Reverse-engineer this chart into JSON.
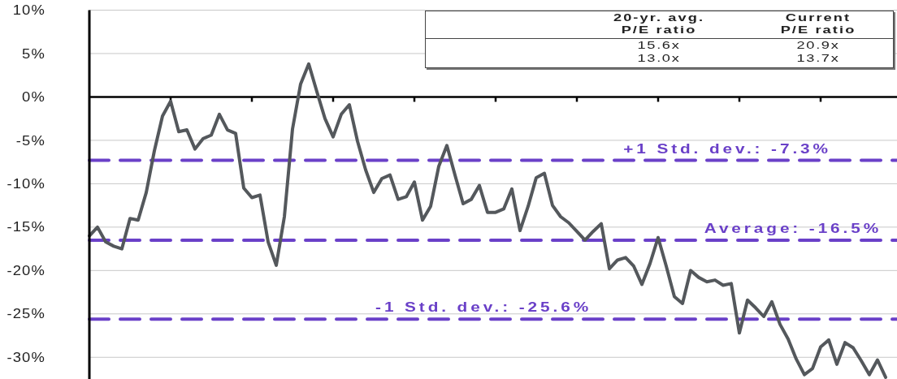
{
  "chart_data": {
    "type": "line",
    "categories": [
      null,
      null,
      null,
      null,
      null,
      null,
      null,
      null,
      null,
      null,
      null,
      null,
      null,
      null,
      null,
      null,
      null,
      null,
      null,
      null,
      null,
      null,
      null,
      null,
      null,
      null,
      null,
      null,
      null,
      null,
      null,
      null,
      null,
      null,
      null,
      null,
      null,
      null,
      null,
      null,
      null,
      null,
      null,
      null,
      null,
      null,
      null,
      null,
      null,
      null,
      null,
      null,
      null,
      null,
      null,
      null,
      null,
      null,
      null,
      null,
      null,
      null,
      null,
      null,
      null,
      null,
      null,
      null,
      null,
      null,
      null,
      null,
      null,
      null,
      null,
      null,
      null,
      null,
      null,
      null,
      null,
      null,
      null,
      null,
      null,
      null,
      null,
      null,
      null,
      null,
      null,
      null,
      null,
      null,
      null,
      null,
      null,
      null,
      null
    ],
    "series": [
      {
        "color": "#54585c",
        "values": [
          -16.0,
          -15.0,
          -16.7,
          -17.2,
          -17.5,
          -14.0,
          -14.2,
          -11.0,
          -6.2,
          -2.2,
          -0.5,
          -4.0,
          -3.8,
          -6.0,
          -4.8,
          -4.4,
          -2.0,
          -3.8,
          -4.2,
          -10.5,
          -11.6,
          -11.3,
          -16.7,
          -19.4,
          -13.8,
          -3.7,
          1.5,
          3.8,
          0.6,
          -2.5,
          -4.6,
          -2.0,
          -0.9,
          -5.1,
          -8.4,
          -11.0,
          -9.4,
          -9.0,
          -11.8,
          -11.5,
          -9.8,
          -14.2,
          -12.6,
          -8.0,
          -5.6,
          -9.0,
          -12.3,
          -11.8,
          -10.2,
          -13.3,
          -13.3,
          -12.9,
          -10.6,
          -15.4,
          -12.6,
          -9.3,
          -8.8,
          -12.5,
          -13.8,
          -14.5,
          -15.5,
          -16.5,
          -15.5,
          -14.6,
          -19.8,
          -18.8,
          -18.5,
          -19.5,
          -21.6,
          -19.2,
          -16.2,
          -19.5,
          -23.0,
          -23.8,
          -20.0,
          -20.8,
          -21.3,
          -21.1,
          -21.7,
          -21.5,
          -27.2,
          -23.4,
          -24.3,
          -25.3,
          -23.6,
          -26.2,
          -27.9,
          -30.2,
          -32.0,
          -31.3,
          -28.8,
          -28.0,
          -30.8,
          -28.3,
          -28.9,
          -30.4,
          -32.0,
          -30.3,
          -32.3
        ]
      }
    ],
    "ylim": [
      -32.5,
      10
    ],
    "yticks": [
      {
        "value": 10,
        "label": "10%"
      },
      {
        "value": 5,
        "label": "5%"
      },
      {
        "value": 0,
        "label": "0%"
      },
      {
        "value": -5,
        "label": "-5%"
      },
      {
        "value": -10,
        "label": "-10%"
      },
      {
        "value": -15,
        "label": "-15%"
      },
      {
        "value": -20,
        "label": "-20%"
      },
      {
        "value": -25,
        "label": "-25%"
      },
      {
        "value": -30,
        "label": "-30%"
      }
    ],
    "grid": "y",
    "tick_labels": "y",
    "ref_lines": [
      {
        "axis": "y",
        "value": -7.3,
        "label": "+1 Std. dev.: -7.3%",
        "color": "#6a40c8",
        "line_style": "dashed"
      },
      {
        "axis": "y",
        "value": -16.5,
        "label": "Average: -16.5%",
        "color": "#6a40c8",
        "line_style": "dashed"
      },
      {
        "axis": "y",
        "value": -25.6,
        "label": "-1 Std. dev.: -25.6%",
        "color": "#6a40c8",
        "line_style": "dashed"
      }
    ],
    "annotations": [
      "20-yr. avg.",
      "P/E ratio",
      "Current",
      "P/E ratio",
      "15.6x",
      "20.9x",
      "13.0x",
      "13.7x"
    ]
  }
}
